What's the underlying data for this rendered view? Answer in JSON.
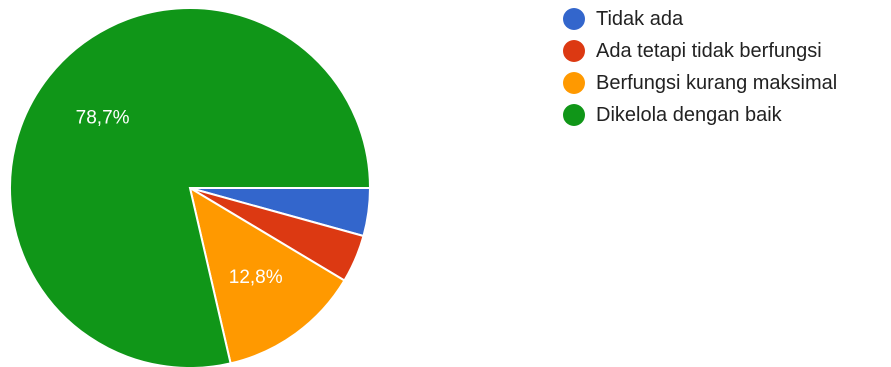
{
  "chart_data": {
    "type": "pie",
    "categories": [
      "Tidak ada",
      "Ada tetapi tidak berfungsi",
      "Berfungsi kurang maksimal",
      "Dikelola dengan baik"
    ],
    "values": [
      4.3,
      4.3,
      12.8,
      78.7
    ],
    "colors": [
      "#3366cc",
      "#dc3912",
      "#ff9900",
      "#109618"
    ],
    "data_labels": [
      "",
      "",
      "12,8%",
      "78,7%"
    ],
    "legend_position": "right",
    "start_angle": "3 o'clock",
    "direction": "clockwise"
  }
}
